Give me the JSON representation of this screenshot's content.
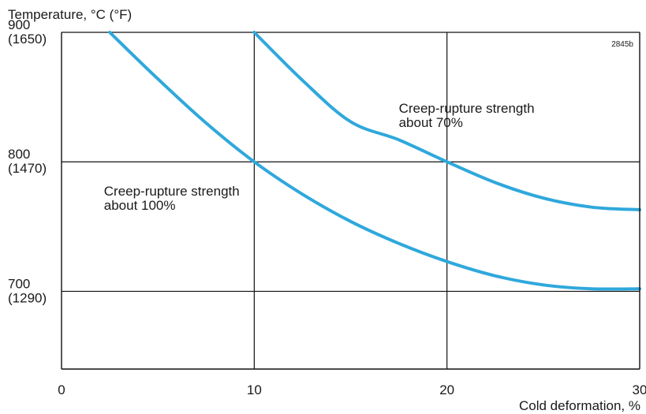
{
  "chart_data": {
    "type": "line",
    "ylabel": "Temperature, °C (°F)",
    "xlabel": "Cold deformation, %",
    "figure_id": "2845b",
    "xlim": [
      0,
      30
    ],
    "ylim": [
      640,
      900
    ],
    "grid": true,
    "x_ticks": [
      {
        "value": 0,
        "label": "0"
      },
      {
        "value": 10,
        "label": "10"
      },
      {
        "value": 20,
        "label": "20"
      },
      {
        "value": 30,
        "label": "30"
      }
    ],
    "y_ticks": [
      {
        "value": 900,
        "label": "900",
        "label2": "(1650)"
      },
      {
        "value": 800,
        "label": "800",
        "label2": "(1470)"
      },
      {
        "value": 700,
        "label": "700",
        "label2": "(1290)"
      }
    ],
    "series": [
      {
        "color": "#2fa8dc",
        "x": [
          2.5,
          5,
          7.5,
          10,
          12.5,
          15,
          17.5,
          20,
          22.5,
          25,
          27.5,
          30
        ],
        "y": [
          900,
          864,
          830,
          800,
          775,
          754,
          737,
          723,
          712,
          705,
          702,
          702
        ]
      },
      {
        "color": "#2fa8dc",
        "x": [
          10,
          12.5,
          15,
          17.5,
          20,
          22.5,
          25,
          27.5,
          30
        ],
        "y": [
          900,
          863,
          831,
          817,
          800,
          784,
          772,
          765,
          763
        ]
      }
    ],
    "annotations": [
      {
        "line1": "Creep-rupture strength",
        "line2": "about 70%",
        "x": 17.5,
        "y": 838
      },
      {
        "line1": "Creep-rupture strength",
        "line2": "about 100%",
        "x": 2.2,
        "y": 774
      }
    ]
  }
}
